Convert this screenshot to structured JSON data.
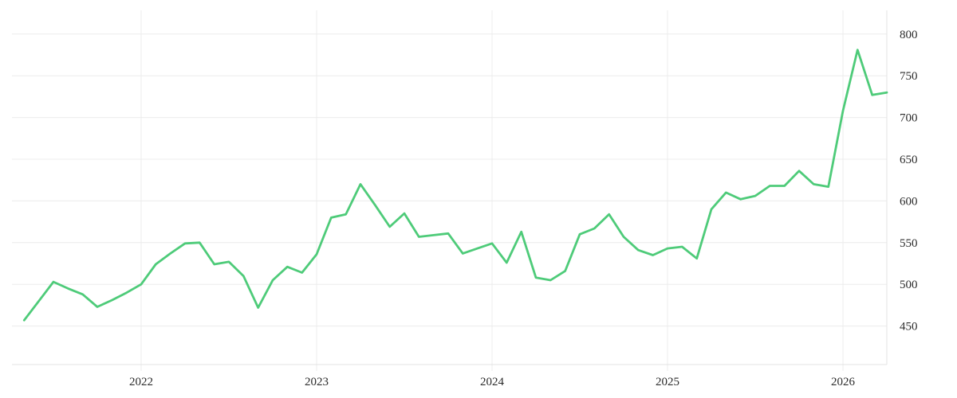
{
  "page": {
    "background_color": "#ffffff"
  },
  "chart_data": {
    "type": "line",
    "title": "",
    "legend": "none",
    "grid": "on",
    "frequency": "monthly",
    "line_color": "#4ecb79",
    "gridline_color": "#ececec",
    "axis_line_color": "#e3e3e3",
    "label_color": "#2b2b2b",
    "x_axis": {
      "tick_labels": [
        "2022",
        "2023",
        "2024",
        "2025",
        "2026"
      ]
    },
    "y_axis": {
      "side": "right",
      "tick_labels": [
        "800",
        "750",
        "700",
        "650",
        "600",
        "550",
        "500",
        "450"
      ],
      "tick_values": [
        800,
        750,
        700,
        650,
        600,
        550,
        500,
        450
      ],
      "min": 404,
      "max": 828
    },
    "x": [
      "2021-05",
      "2021-06",
      "2021-07",
      "2021-08",
      "2021-09",
      "2021-10",
      "2021-11",
      "2021-12",
      "2022-01",
      "2022-02",
      "2022-03",
      "2022-04",
      "2022-05",
      "2022-06",
      "2022-07",
      "2022-08",
      "2022-09",
      "2022-10",
      "2022-11",
      "2022-12",
      "2023-01",
      "2023-02",
      "2023-03",
      "2023-04",
      "2023-05",
      "2023-06",
      "2023-07",
      "2023-08",
      "2023-09",
      "2023-10",
      "2023-11",
      "2023-12",
      "2024-01",
      "2024-02",
      "2024-03",
      "2024-04",
      "2024-05",
      "2024-06",
      "2024-07",
      "2024-08",
      "2024-09",
      "2024-10",
      "2024-11",
      "2024-12",
      "2025-01",
      "2025-02",
      "2025-03",
      "2025-04",
      "2025-05",
      "2025-06",
      "2025-07",
      "2025-08",
      "2025-09",
      "2025-10",
      "2025-11",
      "2025-12",
      "2026-01",
      "2026-02",
      "2026-03",
      "2026-04"
    ],
    "values": [
      457,
      480,
      503,
      495,
      488,
      473,
      481,
      490,
      500,
      524,
      537,
      549,
      550,
      524,
      527,
      510,
      472,
      505,
      521,
      514,
      536,
      580,
      584,
      620,
      595,
      569,
      585,
      557,
      559,
      561,
      537,
      543,
      549,
      526,
      563,
      508,
      505,
      516,
      560,
      567,
      584,
      557,
      541,
      535,
      543,
      545,
      531,
      590,
      610,
      602,
      606,
      618,
      618,
      636,
      620,
      617,
      708,
      781,
      727,
      730
    ]
  }
}
